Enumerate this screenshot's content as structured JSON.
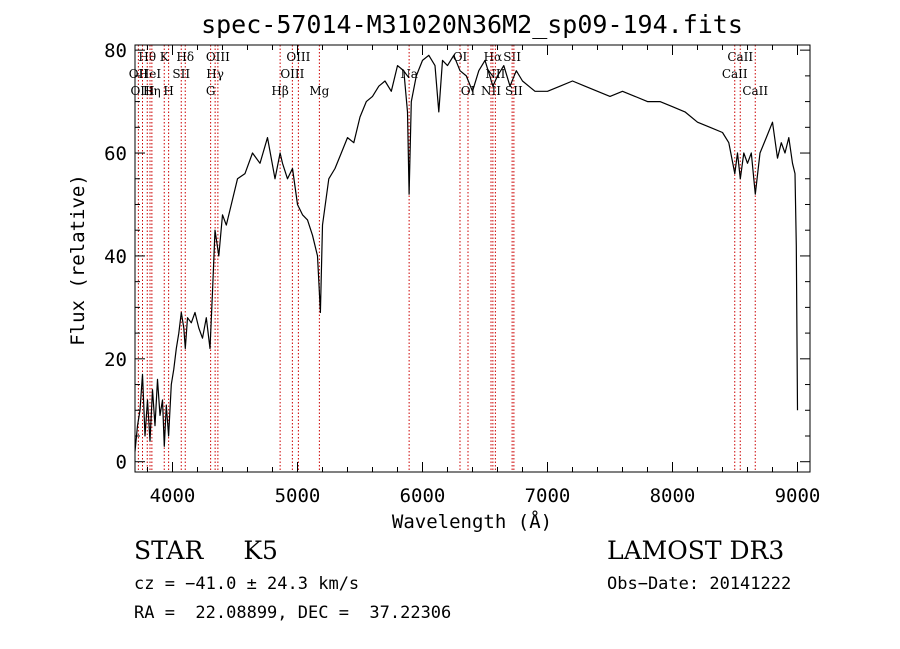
{
  "chart_data": {
    "type": "line",
    "title": "spec-57014-M31020N36M2_sp09-194.fits",
    "xlabel": "Wavelength (Å)",
    "ylabel": "Flux (relative)",
    "xlim": [
      3700,
      9100
    ],
    "ylim": [
      -2,
      81
    ],
    "xticks": [
      4000,
      5000,
      6000,
      7000,
      8000,
      9000
    ],
    "yticks": [
      0,
      20,
      40,
      60,
      80
    ],
    "line_color": "#000000",
    "marker_color": "#cc0000",
    "series": [
      {
        "name": "flux",
        "x": [
          3700,
          3720,
          3740,
          3760,
          3780,
          3800,
          3820,
          3840,
          3860,
          3880,
          3900,
          3920,
          3934,
          3950,
          3969,
          3990,
          4010,
          4030,
          4050,
          4070,
          4090,
          4102,
          4120,
          4150,
          4180,
          4210,
          4240,
          4270,
          4300,
          4320,
          4340,
          4370,
          4400,
          4430,
          4470,
          4520,
          4580,
          4640,
          4700,
          4760,
          4820,
          4861,
          4880,
          4920,
          4960,
          5000,
          5040,
          5080,
          5120,
          5160,
          5183,
          5200,
          5250,
          5300,
          5350,
          5400,
          5450,
          5500,
          5550,
          5600,
          5650,
          5700,
          5750,
          5800,
          5850,
          5880,
          5893,
          5910,
          5950,
          6000,
          6050,
          6100,
          6130,
          6160,
          6200,
          6250,
          6300,
          6350,
          6400,
          6450,
          6500,
          6563,
          6600,
          6650,
          6700,
          6750,
          6800,
          6850,
          6900,
          7000,
          7100,
          7200,
          7300,
          7400,
          7500,
          7600,
          7700,
          7800,
          7900,
          8000,
          8100,
          8200,
          8300,
          8400,
          8450,
          8498,
          8520,
          8542,
          8570,
          8600,
          8630,
          8662,
          8700,
          8750,
          8800,
          8840,
          8870,
          8900,
          8930,
          8960,
          8980,
          8990,
          9000
        ],
        "values": [
          2,
          7,
          10,
          17,
          5,
          12,
          4,
          14,
          7,
          16,
          9,
          12,
          3,
          11,
          5,
          15,
          18,
          22,
          25,
          29,
          26,
          22,
          28,
          27,
          29,
          26,
          24,
          28,
          22,
          33,
          45,
          40,
          48,
          46,
          50,
          55,
          56,
          60,
          58,
          63,
          55,
          60,
          58,
          55,
          57,
          50,
          48,
          47,
          44,
          40,
          29,
          46,
          55,
          57,
          60,
          63,
          62,
          67,
          70,
          71,
          73,
          74,
          72,
          77,
          76,
          68,
          52,
          70,
          75,
          78,
          79,
          77,
          68,
          78,
          77,
          79,
          76,
          75,
          72,
          76,
          78,
          73,
          75,
          77,
          73,
          76,
          74,
          73,
          72,
          72,
          73,
          74,
          73,
          72,
          71,
          72,
          71,
          70,
          70,
          69,
          68,
          66,
          65,
          64,
          62,
          56,
          60,
          55,
          60,
          58,
          60,
          52,
          60,
          63,
          66,
          59,
          62,
          60,
          63,
          58,
          56,
          42,
          10
        ]
      }
    ],
    "line_markers": [
      {
        "name": "Hθ",
        "wavelength": 3798,
        "row": 1
      },
      {
        "name": "OII",
        "wavelength": 3727,
        "row": 2
      },
      {
        "name": "HeI",
        "wavelength": 3820,
        "row": 2
      },
      {
        "name": "OIII",
        "wavelength": 3760,
        "row": 3
      },
      {
        "name": "Hη",
        "wavelength": 3835,
        "row": 3
      },
      {
        "name": "K",
        "wavelength": 3934,
        "row": 1
      },
      {
        "name": "H",
        "wavelength": 3969,
        "row": 3
      },
      {
        "name": "SII",
        "wavelength": 4070,
        "row": 2
      },
      {
        "name": "Hδ",
        "wavelength": 4102,
        "row": 1
      },
      {
        "name": "OIII",
        "wavelength": 4363,
        "row": 1
      },
      {
        "name": "Hγ",
        "wavelength": 4341,
        "row": 2
      },
      {
        "name": "G",
        "wavelength": 4305,
        "row": 3
      },
      {
        "name": "Hβ",
        "wavelength": 4861,
        "row": 3
      },
      {
        "name": "OIII",
        "wavelength": 4959,
        "row": 2
      },
      {
        "name": "OIII",
        "wavelength": 5007,
        "row": 1
      },
      {
        "name": "Mg",
        "wavelength": 5175,
        "row": 3
      },
      {
        "name": "Na",
        "wavelength": 5893,
        "row": 2
      },
      {
        "name": "OI",
        "wavelength": 6300,
        "row": 1
      },
      {
        "name": "OI",
        "wavelength": 6364,
        "row": 3
      },
      {
        "name": "Hα",
        "wavelength": 6563,
        "row": 1
      },
      {
        "name": "NII",
        "wavelength": 6548,
        "row": 3
      },
      {
        "name": "NII",
        "wavelength": 6583,
        "row": 2
      },
      {
        "name": "SII",
        "wavelength": 6717,
        "row": 1
      },
      {
        "name": "SII",
        "wavelength": 6731,
        "row": 3
      },
      {
        "name": "CaII",
        "wavelength": 8542,
        "row": 1
      },
      {
        "name": "CaII",
        "wavelength": 8498,
        "row": 2
      },
      {
        "name": "CaII",
        "wavelength": 8662,
        "row": 3
      }
    ]
  },
  "info": {
    "object_class": "STAR",
    "subclass": "K5",
    "cz": "cz = −41.0 ± 24.3 km/s",
    "radec": "RA =  22.08899, DEC =  37.22306",
    "survey": "LAMOST DR3",
    "obs_date": "Obs−Date: 20141222"
  }
}
